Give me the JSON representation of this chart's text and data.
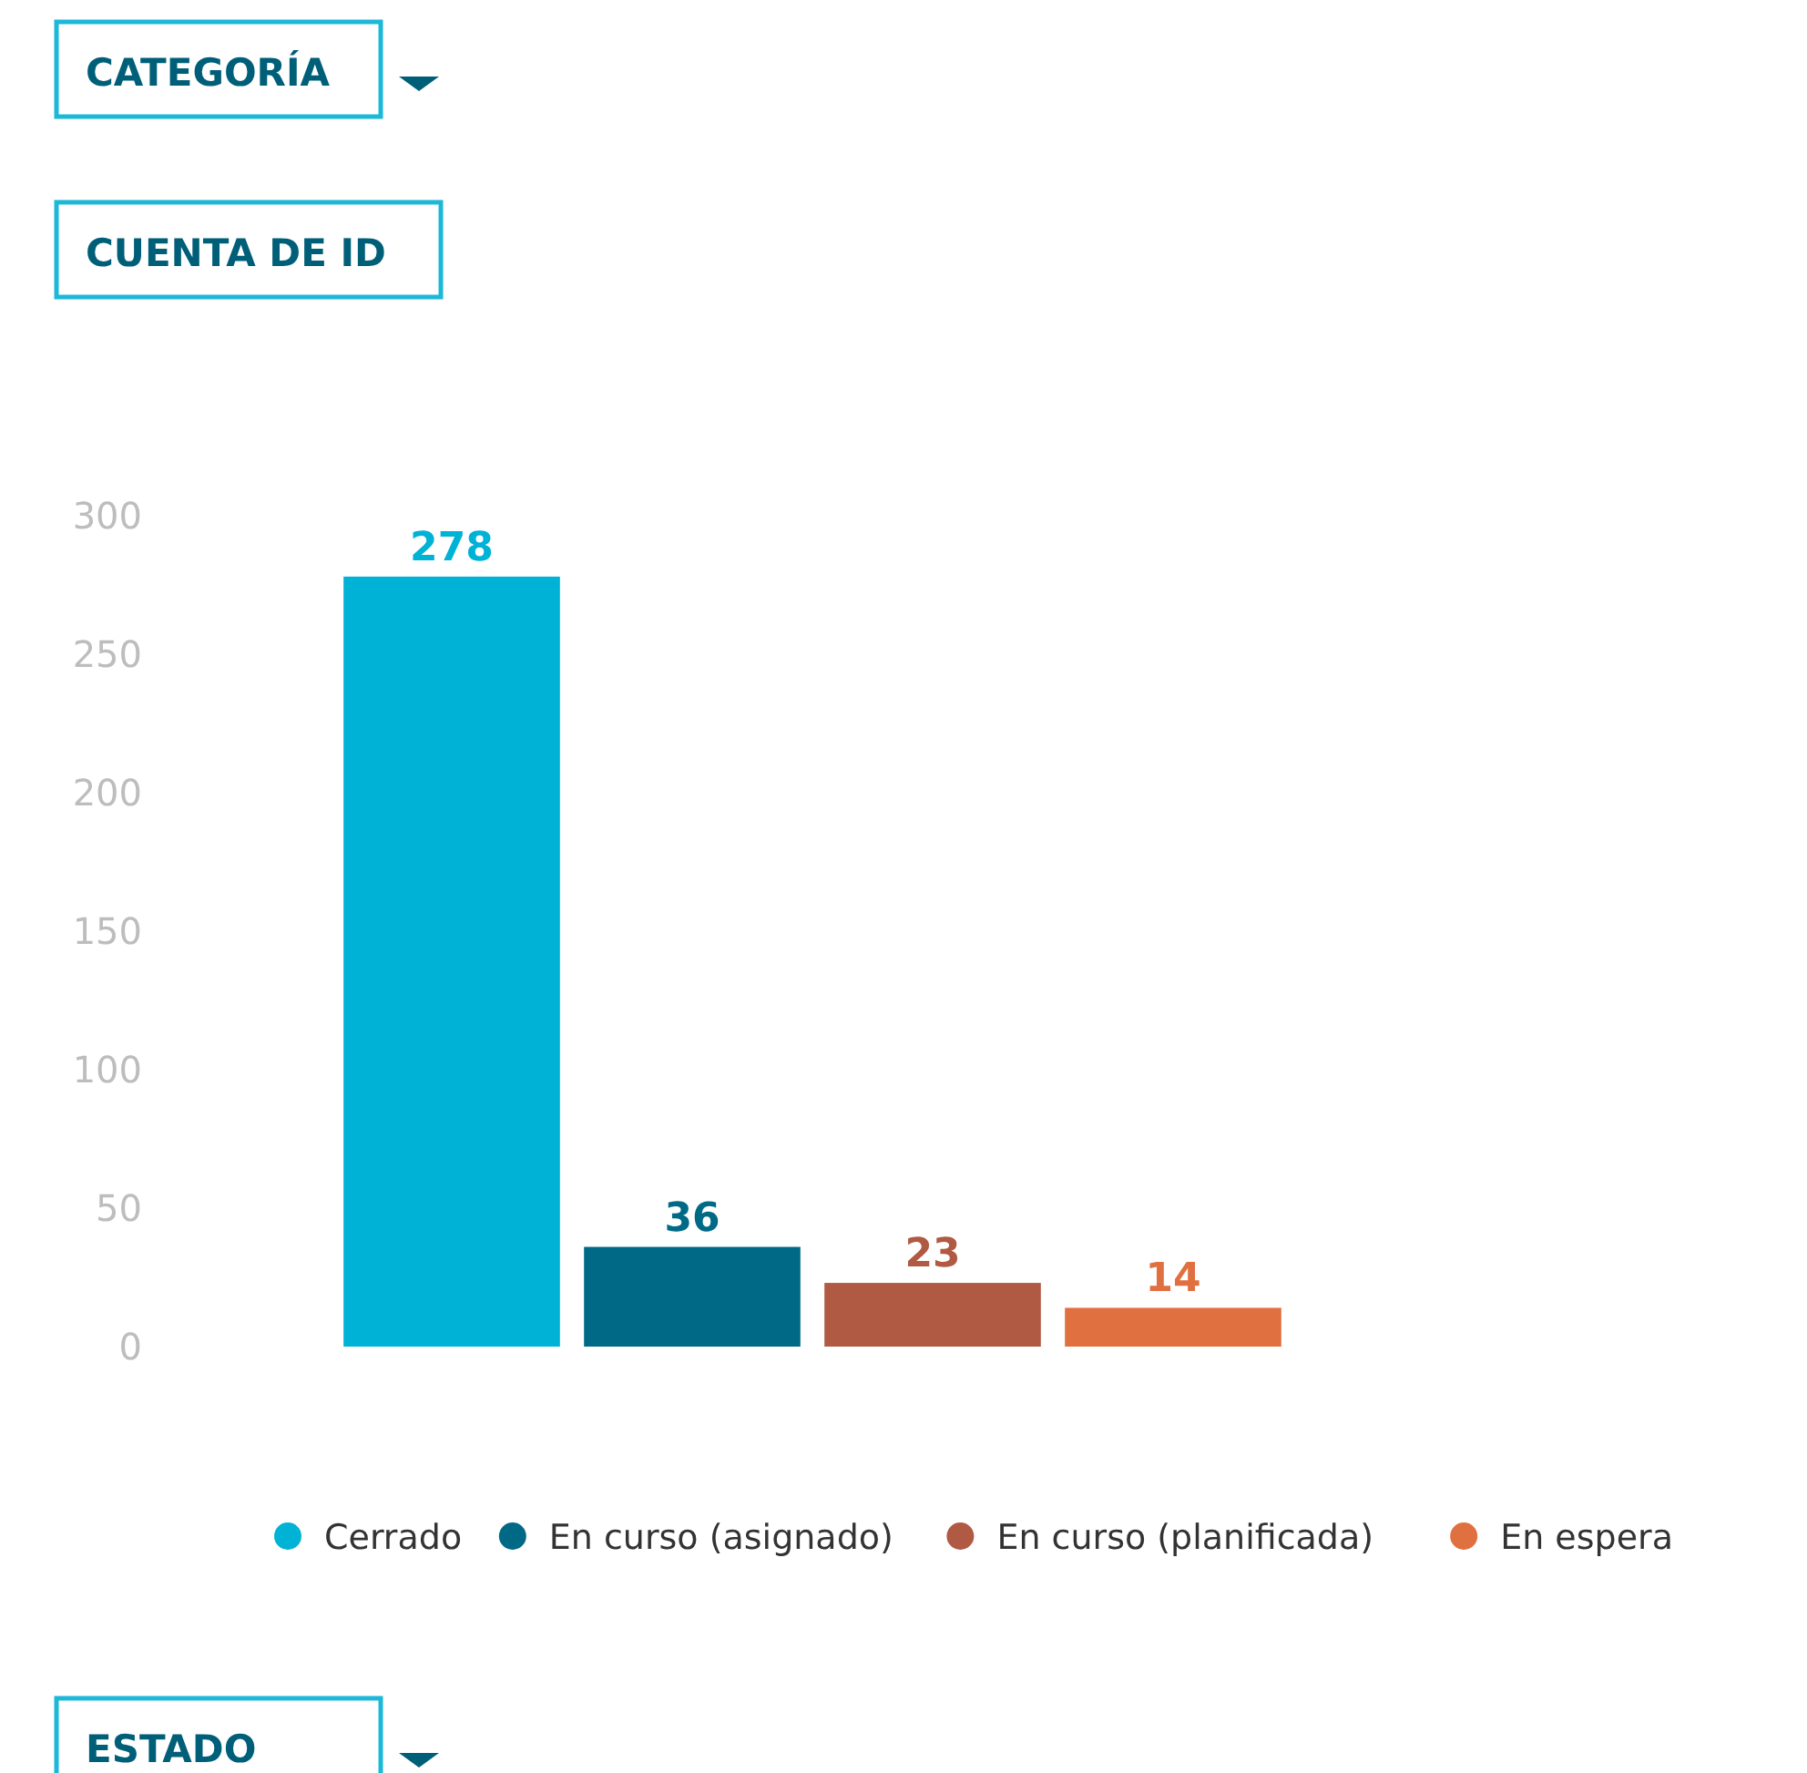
{
  "chart_data": {
    "type": "bar",
    "title": "CUENTA DE ID",
    "annotations": [
      "CATEGORÍA",
      "ESTADO"
    ],
    "categories": [
      null
    ],
    "series": [
      {
        "name": "Cerrado",
        "color": "#00b2d6",
        "values": [
          278
        ]
      },
      {
        "name": "En curso (asignado)",
        "color": "#006a86",
        "values": [
          36
        ]
      },
      {
        "name": "En curso (planificada)",
        "color": "#b05a44",
        "values": [
          23
        ]
      },
      {
        "name": "En espera",
        "color": "#e07040",
        "values": [
          14
        ]
      }
    ],
    "ylim": [
      0,
      300
    ],
    "yticks": [
      0,
      50,
      100,
      150,
      200,
      250,
      300
    ],
    "data_labels": true,
    "legend": "bottom",
    "grid": false
  }
}
